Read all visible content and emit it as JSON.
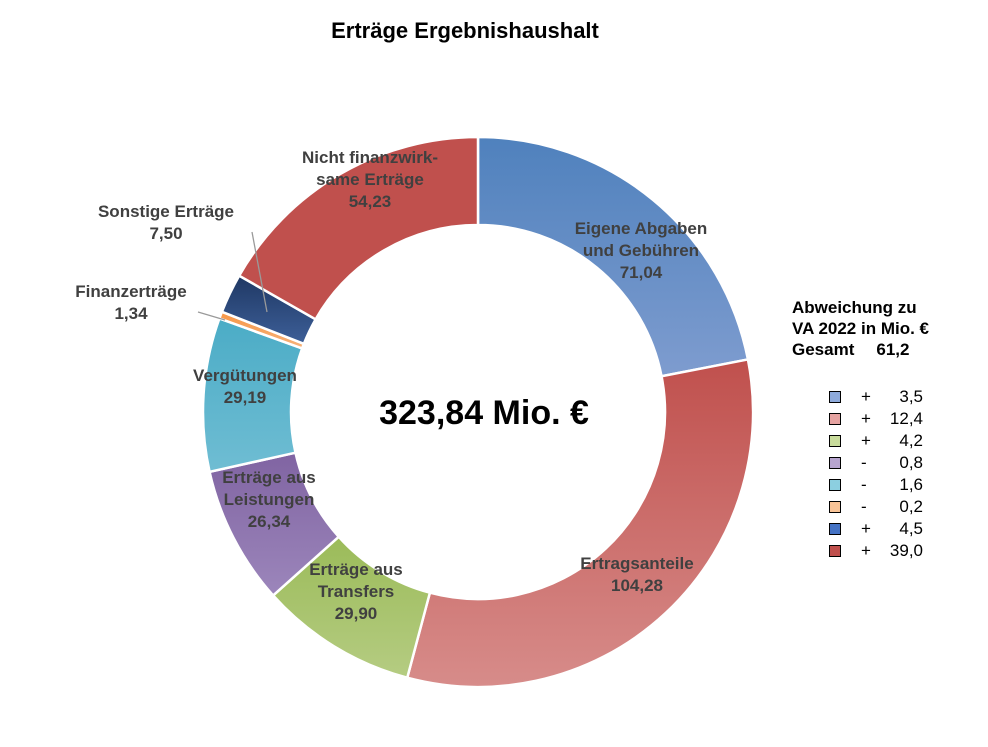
{
  "chart_data": {
    "type": "pie",
    "title": "Erträge Ergebnishaushalt",
    "center_label": "323,84 Mio. €",
    "slices": [
      {
        "label_lines": [
          "Eigene Abgaben",
          "und Gebühren"
        ],
        "value": 71.04,
        "value_text": "71,04",
        "color": "#7e9ccf",
        "color_dark": "#4f81bd"
      },
      {
        "label_lines": [
          "Ertragsanteile"
        ],
        "value": 104.28,
        "value_text": "104,28",
        "color": "#d78c8a",
        "color_dark": "#c0504d"
      },
      {
        "label_lines": [
          "Erträge aus",
          "Transfers"
        ],
        "value": 29.9,
        "value_text": "29,90",
        "color": "#b5cc82",
        "color_dark": "#9bbb59"
      },
      {
        "label_lines": [
          "Erträge aus",
          "Leistungen"
        ],
        "value": 26.34,
        "value_text": "26,34",
        "color": "#9c86bb",
        "color_dark": "#8064a2"
      },
      {
        "label_lines": [
          "Vergütungen"
        ],
        "value": 29.19,
        "value_text": "29,19",
        "color": "#6fbdd3",
        "color_dark": "#4bacc6"
      },
      {
        "label_lines": [
          "Finanzerträge"
        ],
        "value": 1.34,
        "value_text": "1,34",
        "color": "#f6b27a",
        "color_dark": "#f79646"
      },
      {
        "label_lines": [
          "Sonstige Erträge"
        ],
        "value": 7.5,
        "value_text": "7,50",
        "color": "#3d5f98",
        "color_dark": "#1f3864"
      },
      {
        "label_lines": [
          "Nicht finanzwirk-",
          "same Erträge"
        ],
        "value": 54.23,
        "value_text": "54,23",
        "color": "#c0504d",
        "color_dark": "#c0504d"
      }
    ],
    "legend": {
      "heading_lines": [
        "Abweichung zu",
        "VA 2022 in Mio. €"
      ],
      "total_label": "Gesamt",
      "total_value": "61,2",
      "entries": [
        {
          "sign": "+",
          "value": "3,5",
          "color": "#8eaadb"
        },
        {
          "sign": "+",
          "value": "12,4",
          "color": "#e6a3a1"
        },
        {
          "sign": "+",
          "value": "4,2",
          "color": "#c9dc9c"
        },
        {
          "sign": "-",
          "value": "0,8",
          "color": "#b7a4cf"
        },
        {
          "sign": "-",
          "value": "1,6",
          "color": "#8ccfe0"
        },
        {
          "sign": "-",
          "value": "0,2",
          "color": "#f9c497"
        },
        {
          "sign": "+",
          "value": "4,5",
          "color": "#4472c4"
        },
        {
          "sign": "+",
          "value": "39,0",
          "color": "#c0504d"
        }
      ]
    }
  }
}
